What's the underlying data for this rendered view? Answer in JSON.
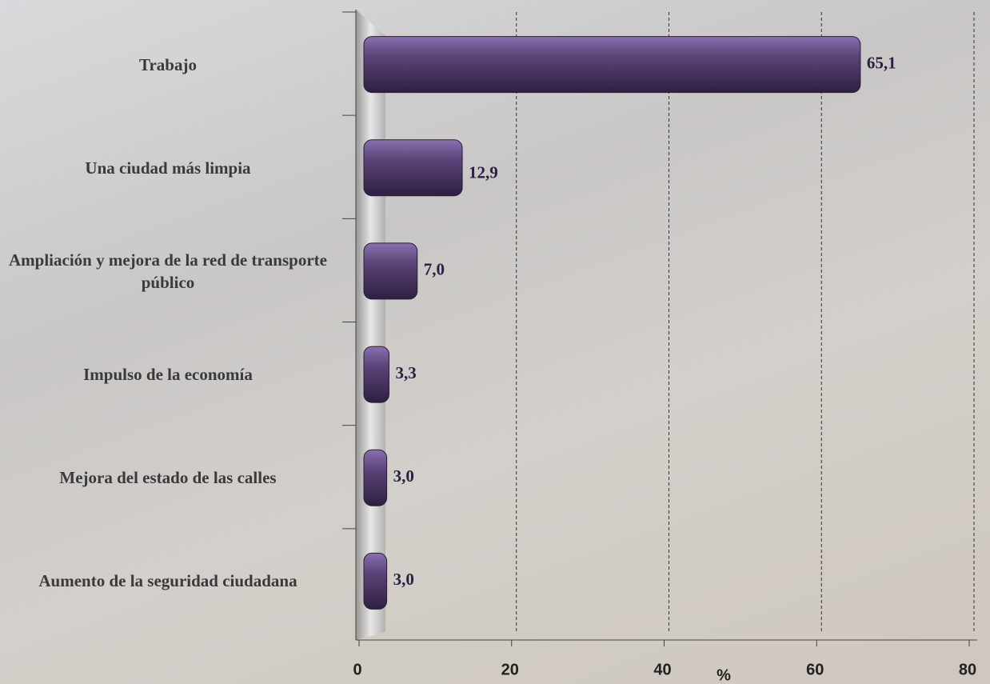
{
  "chart_data": {
    "type": "bar",
    "orientation": "horizontal",
    "categories": [
      "Trabajo",
      "Una ciudad más limpia",
      "Ampliación y mejora de la red de transporte público",
      "Impulso de la economía",
      "Mejora del estado de las calles",
      "Aumento de la seguridad ciudadana"
    ],
    "values": [
      65.1,
      12.9,
      7.0,
      3.3,
      3.0,
      3.0
    ],
    "value_labels": [
      "65,1",
      "12,9",
      "7,0",
      "3,3",
      "3,0",
      "3,0"
    ],
    "color": "#5b4478",
    "xlabel": "%",
    "xlim": [
      0,
      80
    ],
    "xticks": [
      0,
      20,
      40,
      60,
      80
    ],
    "grid": true
  }
}
